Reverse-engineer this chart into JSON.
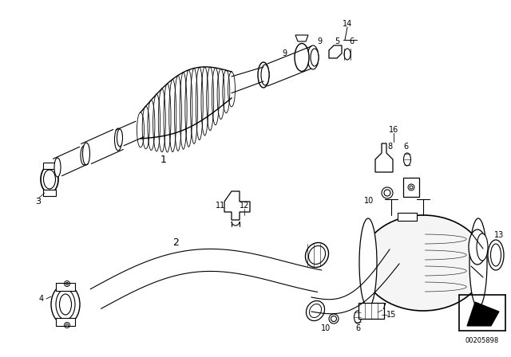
{
  "bg_color": "#ffffff",
  "line_color": "#000000",
  "fig_width": 6.4,
  "fig_height": 4.48,
  "dpi": 100,
  "watermark": "00205898"
}
